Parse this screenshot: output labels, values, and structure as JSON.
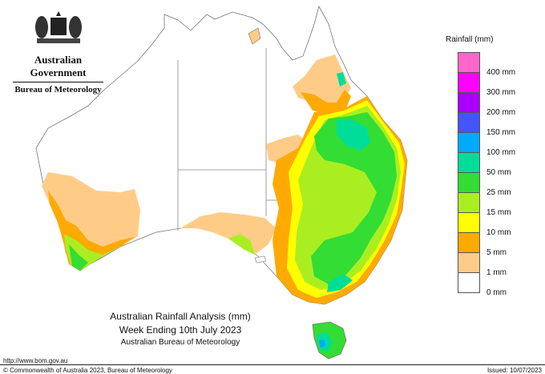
{
  "header": {
    "gov_name": "Australian Government",
    "agency": "Bureau of Meteorology",
    "emblem_icon": "coat-of-arms-icon"
  },
  "legend": {
    "title": "Rainfall (mm)",
    "items": [
      {
        "label": "400 mm",
        "color": "#ff66cc"
      },
      {
        "label": "300 mm",
        "color": "#ff00ff"
      },
      {
        "label": "200 mm",
        "color": "#aa00ff"
      },
      {
        "label": "150 mm",
        "color": "#4455ff"
      },
      {
        "label": "100 mm",
        "color": "#00aaff"
      },
      {
        "label": "50 mm",
        "color": "#00dd99"
      },
      {
        "label": "25 mm",
        "color": "#33dd33"
      },
      {
        "label": "15 mm",
        "color": "#aaee22"
      },
      {
        "label": "10 mm",
        "color": "#ffff00"
      },
      {
        "label": "5 mm",
        "color": "#ffaa00"
      },
      {
        "label": "1 mm",
        "color": "#ffcc88"
      },
      {
        "label": "0 mm",
        "color": "#ffffff"
      }
    ]
  },
  "caption": {
    "title": "Australian Rainfall Analysis (mm)",
    "subtitle": "Week Ending 10th July 2023",
    "agency": "Australian Bureau of Meteorology"
  },
  "footer": {
    "url": "http://www.bom.gov.au",
    "copyright": "© Commonwealth of Australia 2023, Bureau of Meteorology",
    "issued": "Issued: 10/07/2023"
  }
}
